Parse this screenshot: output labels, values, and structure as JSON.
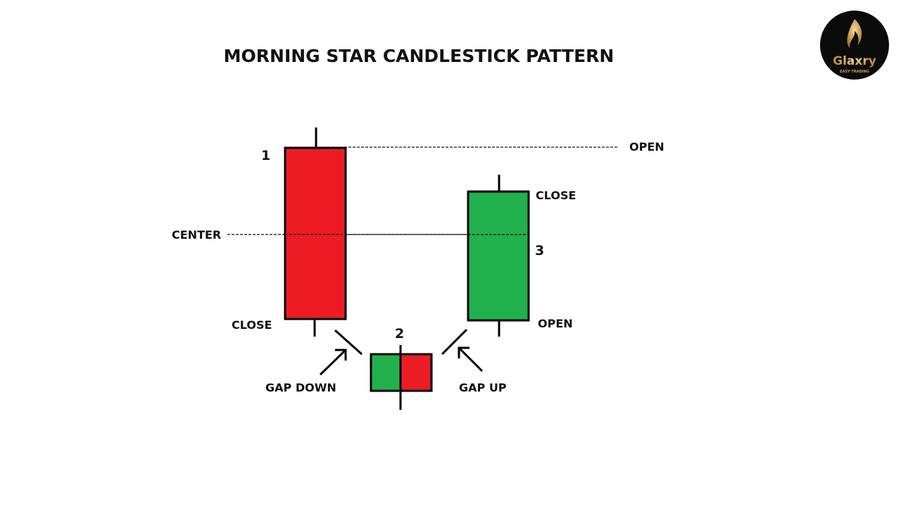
{
  "title": "MORNING STAR CANDLESTICK PATTERN",
  "logo": {
    "brand": "Glaxry",
    "tagline": "EASY TRADING"
  },
  "labels": {
    "open_top": "OPEN",
    "center": "CENTER",
    "close_left": "CLOSE",
    "close_right": "CLOSE",
    "open_right": "OPEN",
    "gap_down": "GAP DOWN",
    "gap_up": "GAP UP"
  },
  "candles": [
    {
      "number": "1",
      "type": "bearish",
      "color": "#ed1c24"
    },
    {
      "number": "2",
      "type": "doji-star",
      "colors": [
        "#22b14c",
        "#ed1c24"
      ]
    },
    {
      "number": "3",
      "type": "bullish",
      "color": "#22b14c"
    }
  ]
}
